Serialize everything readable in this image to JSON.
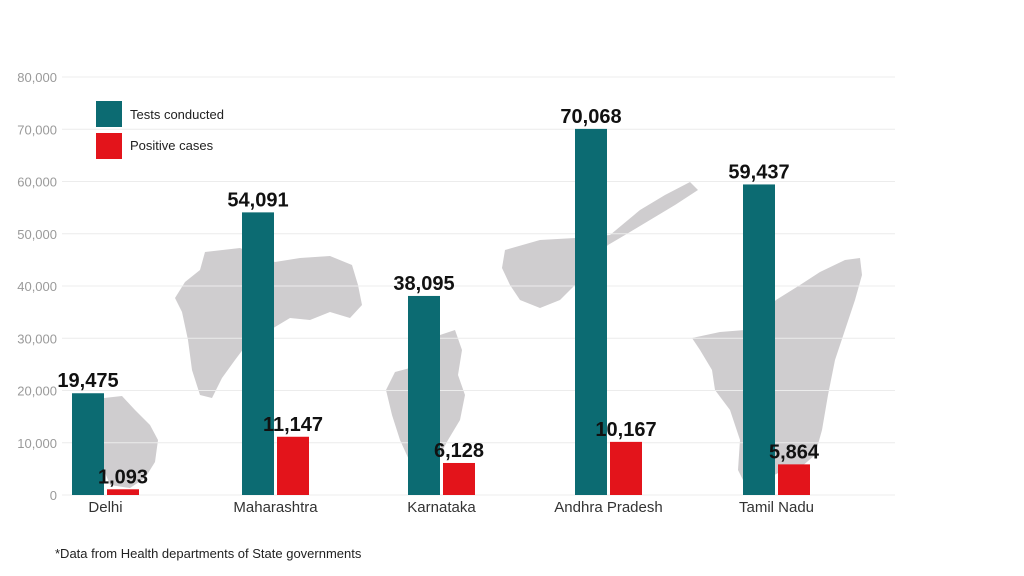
{
  "chart_data": {
    "type": "bar",
    "categories": [
      "Delhi",
      "Maharashtra",
      "Karnataka",
      "Andhra Pradesh",
      "Tamil Nadu"
    ],
    "series": [
      {
        "name": "Tests conducted",
        "values": [
          19475,
          54091,
          38095,
          70068,
          59437
        ],
        "color": "#0c6b72"
      },
      {
        "name": "Positive cases",
        "values": [
          1093,
          11147,
          6128,
          10167,
          5864
        ],
        "color": "#e3141b"
      }
    ],
    "data_labels": {
      "series0": [
        "19,475",
        "54,091",
        "38,095",
        "70,068",
        "59,437"
      ],
      "series1": [
        "1,093",
        "11,147",
        "6,128",
        "10,167",
        "5,864"
      ]
    },
    "yticks": [
      "0",
      "10,000",
      "20,000",
      "30,000",
      "40,000",
      "50,000",
      "60,000",
      "70,000",
      "80,000"
    ],
    "ylim": [
      0,
      80000
    ],
    "grid": true,
    "legend_placement": "top-left",
    "title": "",
    "xlabel": "",
    "ylabel": "",
    "footnote": "*Data from Health departments of State governments",
    "background_images": "grey silhouettes of state maps behind each bar group"
  }
}
